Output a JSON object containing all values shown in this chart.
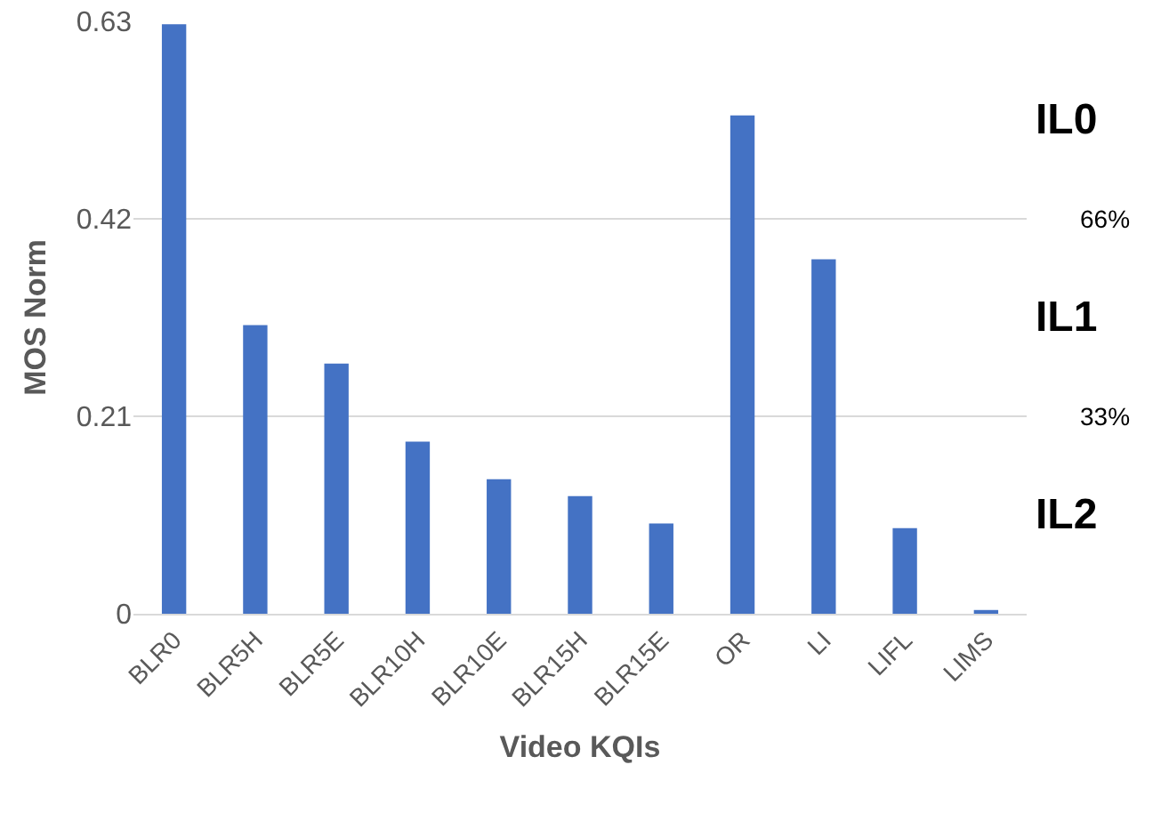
{
  "chart_data": {
    "type": "bar",
    "xlabel": "Video KQIs",
    "ylabel": "MOS Norm",
    "categories": [
      "BLR0",
      "BLR5H",
      "BLR5E",
      "BLR10H",
      "BLR10E",
      "BLR15H",
      "BLR15E",
      "OR",
      "LI",
      "LIFL",
      "LIMS"
    ],
    "values": [
      0.627,
      0.307,
      0.266,
      0.183,
      0.143,
      0.125,
      0.096,
      0.53,
      0.377,
      0.091,
      0.004
    ],
    "color": "#4472c4",
    "ylim": [
      0,
      0.63
    ],
    "yticks": [
      0,
      0.21,
      0.42,
      0.63
    ],
    "grid": "y",
    "annotations": [
      "IL0",
      "66%",
      "IL1",
      "33%",
      "IL2"
    ]
  }
}
